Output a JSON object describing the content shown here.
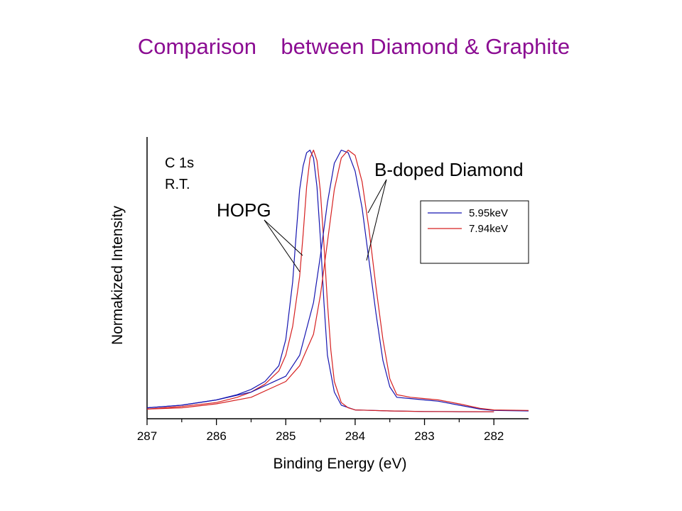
{
  "slide": {
    "title": "Comparison    between Diamond & Graphite"
  },
  "chart_data": {
    "type": "line",
    "title": "",
    "xlabel": "Binding Energy (eV)",
    "ylabel": "Normakized Intensity",
    "x_reversed": true,
    "xlim": [
      287,
      281.5
    ],
    "ylim": [
      0,
      1.05
    ],
    "xticks": [
      287,
      286,
      285,
      284,
      283,
      282
    ],
    "show_yticks": false,
    "grid": false,
    "legend": {
      "position": "top-right"
    },
    "annotations": [
      {
        "id": "c1s",
        "text": "C 1s"
      },
      {
        "id": "rt",
        "text": "R.T."
      },
      {
        "id": "hopg",
        "text": "HOPG"
      },
      {
        "id": "bdd",
        "text": "B-doped Diamond"
      }
    ],
    "series": [
      {
        "name": "5.95keV",
        "color": "#1515b0",
        "group": "HOPG",
        "x": [
          287.0,
          286.5,
          286.0,
          285.7,
          285.5,
          285.3,
          285.1,
          285.0,
          284.9,
          284.85,
          284.8,
          284.75,
          284.7,
          284.65,
          284.6,
          284.55,
          284.5,
          284.45,
          284.4,
          284.3,
          284.2,
          284.0,
          283.5,
          283.0,
          282.5,
          282.0
        ],
        "y": [
          0.02,
          0.03,
          0.05,
          0.07,
          0.09,
          0.12,
          0.18,
          0.28,
          0.5,
          0.68,
          0.85,
          0.94,
          0.99,
          1.0,
          0.97,
          0.86,
          0.66,
          0.42,
          0.22,
          0.08,
          0.03,
          0.012,
          0.008,
          0.006,
          0.005,
          0.005
        ]
      },
      {
        "name": "7.94keV",
        "color": "#d62020",
        "group": "HOPG",
        "x": [
          287.0,
          286.5,
          286.0,
          285.7,
          285.5,
          285.3,
          285.1,
          285.0,
          284.9,
          284.8,
          284.75,
          284.7,
          284.65,
          284.6,
          284.55,
          284.5,
          284.45,
          284.4,
          284.35,
          284.3,
          284.2,
          284.1,
          284.0,
          283.5,
          283.0,
          282.0
        ],
        "y": [
          0.015,
          0.025,
          0.04,
          0.06,
          0.08,
          0.11,
          0.16,
          0.22,
          0.33,
          0.52,
          0.68,
          0.86,
          0.97,
          1.0,
          0.96,
          0.84,
          0.64,
          0.42,
          0.24,
          0.12,
          0.04,
          0.02,
          0.012,
          0.008,
          0.006,
          0.005
        ]
      },
      {
        "name": "5.95keV",
        "color": "#1515b0",
        "group": "B-doped Diamond",
        "x": [
          287.0,
          286.5,
          286.0,
          285.5,
          285.0,
          284.8,
          284.6,
          284.5,
          284.4,
          284.3,
          284.2,
          284.1,
          284.0,
          283.9,
          283.8,
          283.7,
          283.6,
          283.5,
          283.4,
          283.2,
          283.0,
          282.8,
          282.5,
          282.2,
          282.0,
          281.5
        ],
        "y": [
          0.02,
          0.03,
          0.05,
          0.08,
          0.14,
          0.22,
          0.42,
          0.6,
          0.8,
          0.95,
          1.0,
          0.99,
          0.92,
          0.78,
          0.58,
          0.38,
          0.2,
          0.1,
          0.06,
          0.055,
          0.05,
          0.045,
          0.03,
          0.015,
          0.01,
          0.008
        ]
      },
      {
        "name": "7.94keV",
        "color": "#d62020",
        "group": "B-doped Diamond",
        "x": [
          287.0,
          286.5,
          286.0,
          285.5,
          285.0,
          284.8,
          284.6,
          284.5,
          284.4,
          284.3,
          284.2,
          284.1,
          284.0,
          283.9,
          283.8,
          283.7,
          283.6,
          283.5,
          283.4,
          283.2,
          283.0,
          282.8,
          282.5,
          282.2,
          282.0,
          281.5
        ],
        "y": [
          0.015,
          0.02,
          0.035,
          0.06,
          0.12,
          0.18,
          0.3,
          0.45,
          0.65,
          0.85,
          0.97,
          1.0,
          0.98,
          0.88,
          0.7,
          0.48,
          0.28,
          0.13,
          0.07,
          0.06,
          0.055,
          0.05,
          0.035,
          0.018,
          0.012,
          0.01
        ]
      }
    ]
  }
}
